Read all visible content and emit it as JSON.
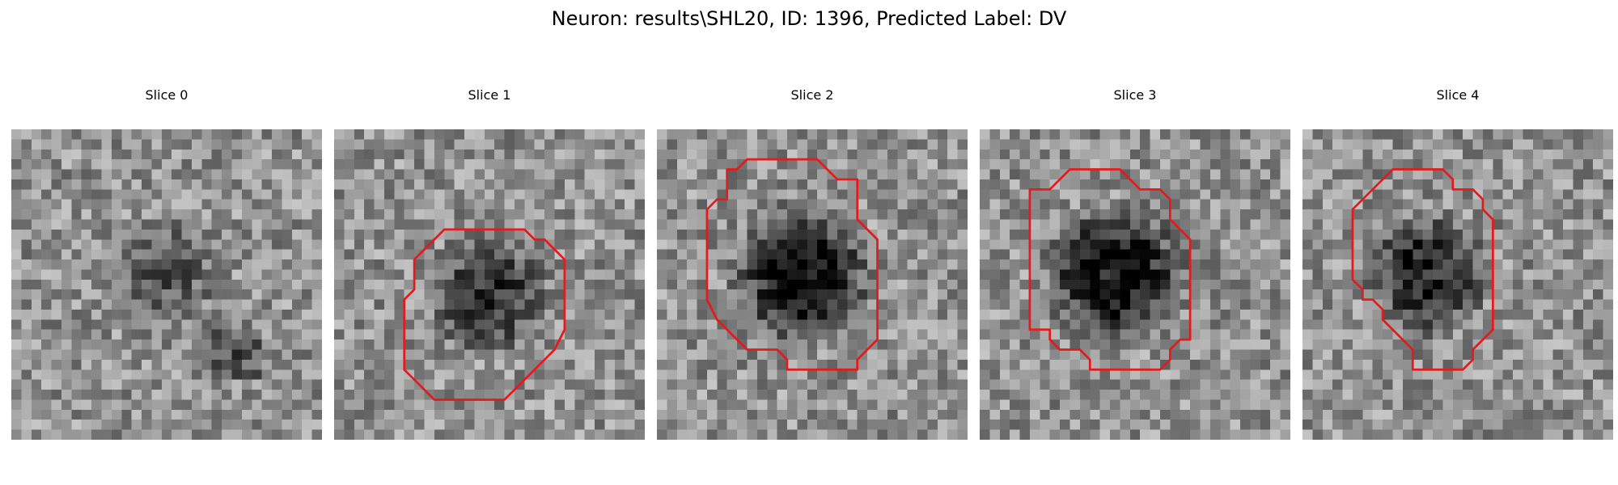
{
  "figure": {
    "title": "Neuron: results\\SHL20, ID: 1396, Predicted Label: DV"
  },
  "colors": {
    "contour": "#e41a1c"
  },
  "panels": [
    {
      "title": "Slice 0",
      "has_contour": false,
      "blob_darkness": 0.35,
      "contour": []
    },
    {
      "title": "Slice 1",
      "has_contour": true,
      "blob_darkness": 0.55,
      "contour": [
        [
          11,
          10
        ],
        [
          19,
          10
        ],
        [
          20,
          11
        ],
        [
          21,
          11
        ],
        [
          22,
          12
        ],
        [
          23,
          13
        ],
        [
          23,
          20
        ],
        [
          22,
          22
        ],
        [
          21,
          23
        ],
        [
          20,
          24
        ],
        [
          19,
          25
        ],
        [
          18,
          26
        ],
        [
          17,
          27
        ],
        [
          10,
          27
        ],
        [
          9,
          26
        ],
        [
          8,
          25
        ],
        [
          7,
          24
        ],
        [
          7,
          17
        ],
        [
          8,
          16
        ],
        [
          8,
          13
        ],
        [
          9,
          12
        ],
        [
          10,
          11
        ]
      ]
    },
    {
      "title": "Slice 2",
      "has_contour": true,
      "blob_darkness": 0.75,
      "contour": [
        [
          9,
          3
        ],
        [
          16,
          3
        ],
        [
          17,
          4
        ],
        [
          18,
          5
        ],
        [
          20,
          5
        ],
        [
          20,
          9
        ],
        [
          21,
          10
        ],
        [
          22,
          11
        ],
        [
          22,
          21
        ],
        [
          21,
          22
        ],
        [
          20,
          23
        ],
        [
          20,
          24
        ],
        [
          13,
          24
        ],
        [
          13,
          23
        ],
        [
          12,
          22
        ],
        [
          9,
          22
        ],
        [
          8,
          21
        ],
        [
          7,
          20
        ],
        [
          6,
          19
        ],
        [
          5,
          17
        ],
        [
          5,
          8
        ],
        [
          6,
          7
        ],
        [
          7,
          7
        ],
        [
          7,
          4
        ],
        [
          8,
          4
        ]
      ]
    },
    {
      "title": "Slice 3",
      "has_contour": true,
      "blob_darkness": 0.75,
      "contour": [
        [
          9,
          4
        ],
        [
          14,
          4
        ],
        [
          15,
          5
        ],
        [
          16,
          6
        ],
        [
          18,
          6
        ],
        [
          19,
          7
        ],
        [
          19,
          9
        ],
        [
          20,
          10
        ],
        [
          21,
          11
        ],
        [
          21,
          21
        ],
        [
          20,
          21
        ],
        [
          19,
          22
        ],
        [
          19,
          23
        ],
        [
          18,
          24
        ],
        [
          11,
          24
        ],
        [
          11,
          23
        ],
        [
          10,
          22
        ],
        [
          8,
          22
        ],
        [
          7,
          21
        ],
        [
          7,
          20
        ],
        [
          5,
          20
        ],
        [
          5,
          6
        ],
        [
          7,
          6
        ],
        [
          8,
          5
        ]
      ]
    },
    {
      "title": "Slice 4",
      "has_contour": true,
      "blob_darkness": 0.65,
      "contour": [
        [
          9,
          4
        ],
        [
          14,
          4
        ],
        [
          15,
          5
        ],
        [
          15,
          6
        ],
        [
          17,
          6
        ],
        [
          18,
          7
        ],
        [
          18,
          8
        ],
        [
          19,
          9
        ],
        [
          19,
          20
        ],
        [
          18,
          21
        ],
        [
          17,
          22
        ],
        [
          17,
          23
        ],
        [
          16,
          24
        ],
        [
          11,
          24
        ],
        [
          11,
          22
        ],
        [
          10,
          21
        ],
        [
          9,
          20
        ],
        [
          8,
          19
        ],
        [
          8,
          18
        ],
        [
          7,
          17
        ],
        [
          6,
          17
        ],
        [
          6,
          16
        ],
        [
          5,
          15
        ],
        [
          5,
          8
        ],
        [
          6,
          7
        ],
        [
          7,
          6
        ],
        [
          8,
          5
        ]
      ]
    }
  ]
}
